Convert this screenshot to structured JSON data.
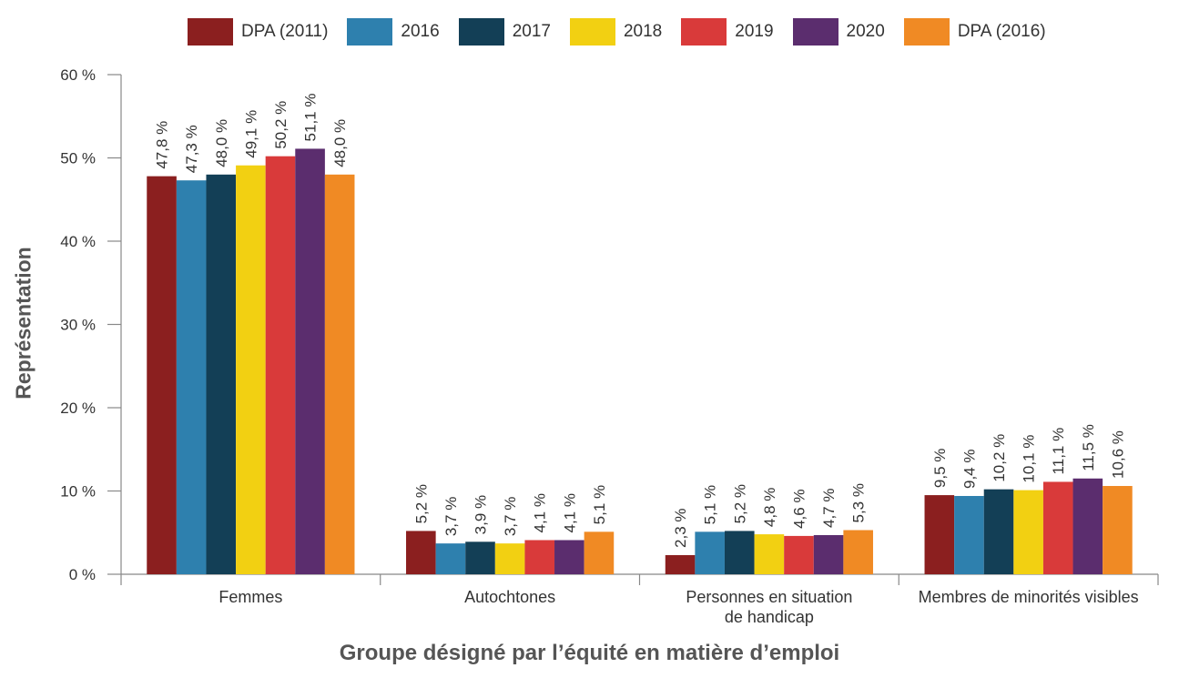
{
  "chart_data": {
    "type": "bar",
    "xlabel": "Groupe désigné par l’équité en matière d’emploi",
    "ylabel": "Représentation",
    "ylim": [
      0,
      60
    ],
    "yticks": [
      0,
      10,
      20,
      30,
      40,
      50,
      60
    ],
    "ytick_labels": [
      "0 %",
      "10 %",
      "20 %",
      "30 %",
      "40 %",
      "50 %",
      "60 %"
    ],
    "grid": false,
    "legend_position": "top",
    "categories": [
      [
        "Femmes"
      ],
      [
        "Autochtones"
      ],
      [
        "Personnes en situation",
        "de handicap"
      ],
      [
        "Membres de minorités visibles"
      ]
    ],
    "series": [
      {
        "name": "DPA (2011)",
        "color": "#8B1F1F",
        "values": [
          47.8,
          5.2,
          2.3,
          9.5
        ],
        "labels": [
          "47,8 %",
          "5,2 %",
          "2,3 %",
          "9,5 %"
        ]
      },
      {
        "name": "2016",
        "color": "#2E80AE",
        "values": [
          47.3,
          3.7,
          5.1,
          9.4
        ],
        "labels": [
          "47,3 %",
          "3,7 %",
          "5,1 %",
          "9,4 %"
        ]
      },
      {
        "name": "2017",
        "color": "#133F56",
        "values": [
          48.0,
          3.9,
          5.2,
          10.2
        ],
        "labels": [
          "48,0 %",
          "3,9 %",
          "5,2 %",
          "10,2 %"
        ]
      },
      {
        "name": "2018",
        "color": "#F2D012",
        "values": [
          49.1,
          3.7,
          4.8,
          10.1
        ],
        "labels": [
          "49,1 %",
          "3,7 %",
          "4,8 %",
          "10,1 %"
        ]
      },
      {
        "name": "2019",
        "color": "#D93A3A",
        "values": [
          50.2,
          4.1,
          4.6,
          11.1
        ],
        "labels": [
          "50,2 %",
          "4,1 %",
          "4,6 %",
          "11,1 %"
        ]
      },
      {
        "name": "2020",
        "color": "#5B2D6E",
        "values": [
          51.1,
          4.1,
          4.7,
          11.5
        ],
        "labels": [
          "51,1 %",
          "4,1 %",
          "4,7 %",
          "11,5 %"
        ]
      },
      {
        "name": "DPA (2016)",
        "color": "#F08A24",
        "values": [
          48.0,
          5.1,
          5.3,
          10.6
        ],
        "labels": [
          "48,0 %",
          "5,1 %",
          "5,3 %",
          "10,6 %"
        ]
      }
    ]
  }
}
